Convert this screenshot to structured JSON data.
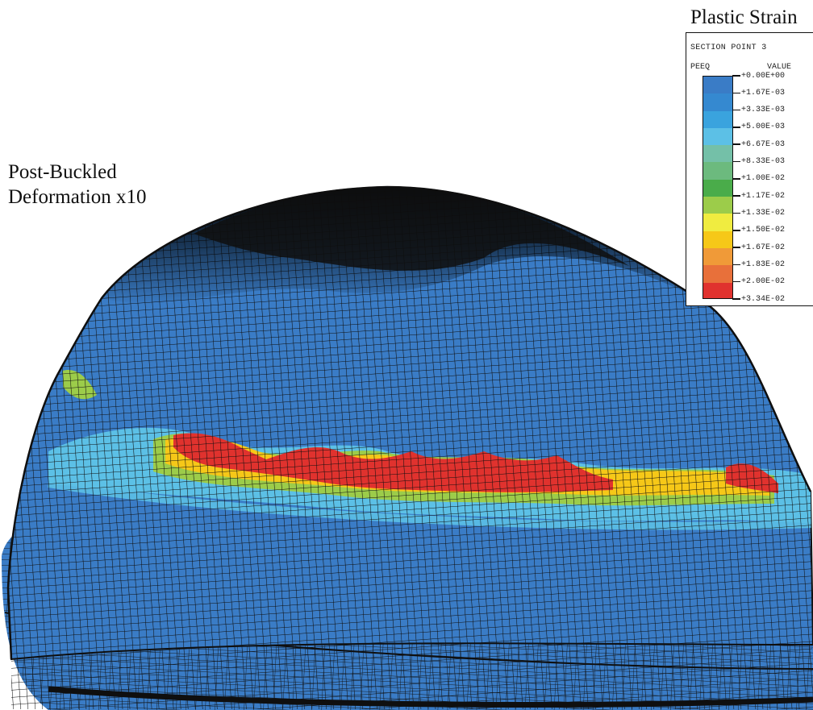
{
  "figure": {
    "label_line1": "Post-Buckled",
    "label_line2": "Deformation x10"
  },
  "legend": {
    "title": "Plastic Strain",
    "section": "SECTION POINT 3",
    "variable": "PEEQ",
    "value_header": "VALUE",
    "values": [
      "+0.00E+00",
      "+1.67E-03",
      "+3.33E-03",
      "+5.00E-03",
      "+6.67E-03",
      "+8.33E-03",
      "+1.00E-02",
      "+1.17E-02",
      "+1.33E-02",
      "+1.50E-02",
      "+1.67E-02",
      "+1.83E-02",
      "+2.00E-02",
      "+3.34E-02"
    ],
    "colors": [
      "#3a7cc6",
      "#3589d0",
      "#3aa3de",
      "#5cc0e6",
      "#74c0a8",
      "#6cba7e",
      "#4aac4a",
      "#9ccc4a",
      "#f0ec40",
      "#f6c818",
      "#f09a38",
      "#e8703a",
      "#e0322e"
    ],
    "mesh_base_color": "#3a7cc6",
    "mesh_line_color": "#0f0f0f"
  }
}
